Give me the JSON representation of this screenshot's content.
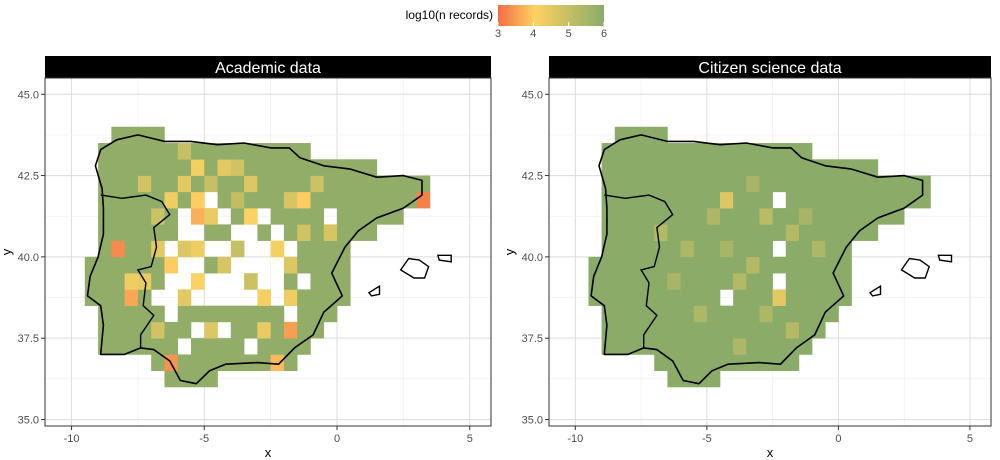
{
  "chart_data": {
    "type": "heatmap",
    "legend": {
      "title": "log10(n records)",
      "ticks": [
        3,
        4,
        5,
        6
      ],
      "range": [
        3,
        6
      ],
      "colors": [
        "#f46d43",
        "#fdd262",
        "#8bab68"
      ],
      "placement": "top"
    },
    "xlabel": "x",
    "ylabel": "y",
    "xlim": [
      -11,
      5.8
    ],
    "ylim": [
      34.8,
      45.5
    ],
    "x_ticks": [
      -10,
      -5,
      0,
      5
    ],
    "y_ticks": [
      "35.0",
      "37.5",
      "40.0",
      "42.5",
      "45.0"
    ],
    "grid": true,
    "cell_size_deg": 0.5,
    "panels": [
      {
        "title": "Academic data",
        "base_value": 5.9,
        "missing": [
          [
            -6,
            40.5
          ],
          [
            -5.5,
            40.5
          ],
          [
            -4,
            40.5
          ],
          [
            -3.5,
            40.5
          ],
          [
            -6.5,
            40
          ],
          [
            -5,
            40
          ],
          [
            -4.5,
            40
          ],
          [
            -3.5,
            40
          ],
          [
            -3,
            40
          ],
          [
            -6,
            39.5
          ],
          [
            -5.5,
            39.5
          ],
          [
            -4,
            39.5
          ],
          [
            -3.5,
            39.5
          ],
          [
            -3,
            39.5
          ],
          [
            -2.5,
            39.5
          ],
          [
            -6.5,
            39
          ],
          [
            -6,
            39
          ],
          [
            -5,
            39
          ],
          [
            -4.5,
            39
          ],
          [
            -4,
            39
          ],
          [
            -3,
            39
          ],
          [
            -2.5,
            39
          ],
          [
            -7,
            38.5
          ],
          [
            -6.5,
            38.5
          ],
          [
            -5.5,
            38.5
          ],
          [
            -5,
            38.5
          ],
          [
            -4.5,
            38.5
          ],
          [
            -4,
            38.5
          ],
          [
            -3.5,
            38.5
          ],
          [
            -2.5,
            38.5
          ],
          [
            -6,
            41
          ],
          [
            -4.5,
            41
          ],
          [
            -3,
            41
          ],
          [
            -5,
            41.5
          ],
          [
            -2.5,
            40.5
          ],
          [
            -6.5,
            38
          ],
          [
            -5.5,
            37.5
          ],
          [
            -4.5,
            37.5
          ],
          [
            -6,
            37
          ],
          [
            -3.5,
            37
          ],
          [
            -0.5,
            41
          ],
          [
            -2,
            40
          ],
          [
            -1.5,
            39
          ],
          [
            -2,
            38
          ]
        ],
        "cells": [
          [
            -5.5,
            42.5,
            4.2
          ],
          [
            -4,
            42.5,
            4.8
          ],
          [
            -6,
            42,
            4.5
          ],
          [
            -5,
            42,
            5.0
          ],
          [
            -3.5,
            42,
            4.6
          ],
          [
            -6.5,
            41.5,
            4.3
          ],
          [
            -5.5,
            41.5,
            4.0
          ],
          [
            -4,
            41.5,
            5.1
          ],
          [
            -2,
            41.5,
            4.7
          ],
          [
            -7,
            41,
            4.9
          ],
          [
            -5,
            41,
            4.4
          ],
          [
            -3.5,
            41,
            4.1
          ],
          [
            -6,
            40,
            4.6
          ],
          [
            -4,
            40,
            5.0
          ],
          [
            -1.5,
            40.5,
            4.8
          ],
          [
            -7,
            40,
            4.5
          ],
          [
            -5.5,
            40,
            4.3
          ],
          [
            -2.5,
            40,
            4.2
          ],
          [
            -6.5,
            39.5,
            4.0
          ],
          [
            -4.5,
            39.5,
            4.7
          ],
          [
            -2,
            39.5,
            4.6
          ],
          [
            -7.5,
            39,
            4.4
          ],
          [
            -5.5,
            39,
            4.1
          ],
          [
            -3.5,
            39,
            4.9
          ],
          [
            -2,
            38.5,
            4.3
          ],
          [
            -6,
            38.5,
            4.5
          ],
          [
            -3,
            38.5,
            4.2
          ],
          [
            -7,
            37.5,
            4.8
          ],
          [
            -5,
            37.5,
            4.6
          ],
          [
            -3,
            37.5,
            4.4
          ],
          [
            -8.5,
            40,
            3.3
          ],
          [
            -8,
            38.5,
            3.6
          ],
          [
            -6.5,
            36.5,
            3.4
          ],
          [
            -2,
            37.5,
            3.5
          ],
          [
            3,
            41.5,
            3.2
          ],
          [
            -5.5,
            41,
            3.7
          ],
          [
            -1.5,
            41.5,
            4.0
          ],
          [
            -4.5,
            42.5,
            4.5
          ],
          [
            -6,
            43,
            5.0
          ],
          [
            -7.5,
            42,
            4.8
          ],
          [
            -1,
            42,
            4.9
          ],
          [
            -0.5,
            40.5,
            4.7
          ],
          [
            -8,
            39,
            4.3
          ],
          [
            -2.5,
            36.5,
            3.8
          ]
        ]
      },
      {
        "title": "Citizen science data",
        "base_value": 6.0,
        "missing": [
          [
            -2.5,
            41.5
          ],
          [
            -2.5,
            40
          ],
          [
            -2.5,
            39
          ],
          [
            -4.5,
            38.5
          ]
        ],
        "cells": [
          [
            -4.5,
            41.5,
            4.6
          ],
          [
            -3,
            41,
            5.2
          ],
          [
            -2.5,
            38.5,
            4.5
          ],
          [
            -4,
            39,
            5.3
          ],
          [
            -6,
            40,
            5.4
          ],
          [
            -7,
            40.5,
            5.3
          ],
          [
            -3.5,
            42,
            5.5
          ],
          [
            -5,
            41,
            5.4
          ],
          [
            -2,
            40.5,
            5.3
          ],
          [
            -1.5,
            41,
            5.5
          ],
          [
            -3,
            38,
            5.4
          ],
          [
            -5.5,
            38,
            5.4
          ],
          [
            -2,
            37.5,
            5.3
          ],
          [
            -4,
            37,
            5.4
          ],
          [
            -6.5,
            39,
            5.5
          ],
          [
            -1,
            40,
            5.4
          ],
          [
            -3.5,
            39.5,
            5.3
          ],
          [
            -4.5,
            40,
            5.5
          ]
        ]
      }
    ]
  }
}
